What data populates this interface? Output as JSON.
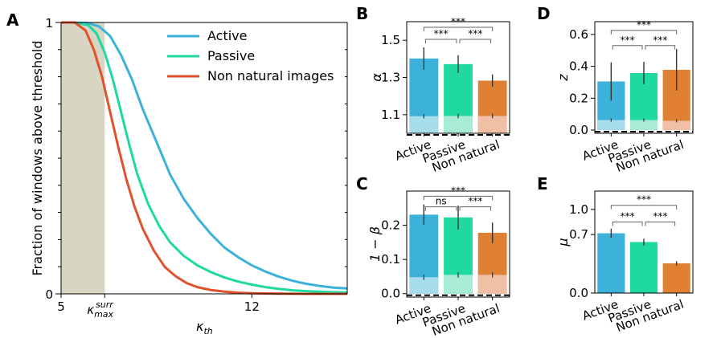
{
  "chart_data": [
    {
      "panel": "A",
      "type": "line",
      "xlabel": "κth",
      "ylabel": "Fraction of windows above threshold",
      "xlim": [
        5,
        15.5
      ],
      "ylim": [
        0,
        1
      ],
      "xtick_labels": [
        "5",
        "κmax^surr",
        "12"
      ],
      "ytick_labels": [
        "0",
        "1"
      ],
      "shaded_region": {
        "x_from": 5,
        "x_to": 6.6
      },
      "legend_position": "top-right",
      "series": [
        {
          "name": "Active",
          "color": "#3cb1d9",
          "x": [
            5,
            5.5,
            6,
            6.4,
            6.8,
            7.2,
            7.6,
            8,
            8.5,
            9,
            9.5,
            10,
            10.5,
            11,
            11.5,
            12,
            12.5,
            13,
            13.5,
            14,
            14.5,
            15,
            15.5
          ],
          "y": [
            1,
            1,
            0.998,
            0.985,
            0.95,
            0.88,
            0.79,
            0.68,
            0.56,
            0.44,
            0.35,
            0.28,
            0.22,
            0.17,
            0.135,
            0.105,
            0.082,
            0.063,
            0.048,
            0.037,
            0.029,
            0.023,
            0.02
          ]
        },
        {
          "name": "Passive",
          "color": "#1fd9a1",
          "x": [
            5,
            5.5,
            6,
            6.3,
            6.6,
            6.9,
            7.2,
            7.5,
            7.8,
            8.2,
            8.6,
            9,
            9.5,
            10,
            10.5,
            11,
            11.5,
            12,
            12.5,
            13,
            13.5,
            14,
            15,
            15.5
          ],
          "y": [
            1,
            1,
            0.99,
            0.96,
            0.89,
            0.79,
            0.67,
            0.55,
            0.44,
            0.33,
            0.25,
            0.19,
            0.14,
            0.105,
            0.08,
            0.06,
            0.045,
            0.034,
            0.025,
            0.018,
            0.013,
            0.01,
            0.006,
            0.005
          ]
        },
        {
          "name": "Non natural images",
          "color": "#e1522c",
          "x": [
            5,
            5.5,
            5.9,
            6.2,
            6.5,
            6.8,
            7.1,
            7.4,
            7.7,
            8,
            8.4,
            8.8,
            9.2,
            9.6,
            10,
            10.5,
            11,
            11.5,
            12,
            13,
            14,
            15,
            15.5
          ],
          "y": [
            1,
            1,
            0.97,
            0.9,
            0.8,
            0.67,
            0.54,
            0.42,
            0.32,
            0.24,
            0.16,
            0.1,
            0.065,
            0.04,
            0.025,
            0.014,
            0.008,
            0.004,
            0.002,
            0.001,
            0,
            0,
            0
          ]
        }
      ]
    },
    {
      "panel": "B",
      "type": "bar",
      "categories": [
        "Active",
        "Passive",
        "Non natural"
      ],
      "ylabel": "α",
      "ylim": [
        1.0,
        1.6
      ],
      "yticks": [
        1.1,
        1.3,
        1.5
      ],
      "ytick_labels": [
        "1.1",
        "1.3",
        "1.5"
      ],
      "values": [
        1.402,
        1.372,
        1.283
      ],
      "errors": [
        0.06,
        0.048,
        0.033
      ],
      "surrogate_values": [
        1.092,
        1.093,
        1.093
      ],
      "surrogate_errors": [
        0.012,
        0.012,
        0.012
      ],
      "baseline": 1.0,
      "significance": [
        {
          "pair": [
            0,
            1
          ],
          "label": "***",
          "level": 1.505
        },
        {
          "pair": [
            1,
            2
          ],
          "label": "***",
          "level": 1.505
        },
        {
          "pair": [
            0,
            2
          ],
          "label": "***",
          "level": 1.57
        }
      ]
    },
    {
      "panel": "C",
      "type": "bar",
      "categories": [
        "Active",
        "Passive",
        "Non natural"
      ],
      "ylabel": "1 − β",
      "ylim": [
        -0.01,
        0.3
      ],
      "yticks": [
        0.0,
        0.1,
        0.2
      ],
      "ytick_labels": [
        "0.0",
        "0.1",
        "0.2"
      ],
      "values": [
        0.231,
        0.223,
        0.178
      ],
      "errors": [
        0.03,
        0.035,
        0.03
      ],
      "surrogate_values": [
        0.048,
        0.055,
        0.055
      ],
      "surrogate_errors": [
        0.008,
        0.008,
        0.008
      ],
      "baseline": 0.0,
      "significance": [
        {
          "pair": [
            0,
            1
          ],
          "label": "ns",
          "level": 0.254
        },
        {
          "pair": [
            1,
            2
          ],
          "label": "***",
          "level": 0.254
        },
        {
          "pair": [
            0,
            2
          ],
          "label": "***",
          "level": 0.285
        }
      ]
    },
    {
      "panel": "D",
      "type": "bar",
      "categories": [
        "Active",
        "Passive",
        "Non natural"
      ],
      "ylabel": "z",
      "ylim": [
        -0.02,
        0.68
      ],
      "yticks": [
        0.0,
        0.2,
        0.4,
        0.6
      ],
      "ytick_labels": [
        "0.0",
        "0.2",
        "0.4",
        "0.6"
      ],
      "values": [
        0.305,
        0.358,
        0.378
      ],
      "errors": [
        0.12,
        0.07,
        0.13
      ],
      "surrogate_values": [
        0.063,
        0.063,
        0.058
      ],
      "surrogate_errors": [
        0.01,
        0.01,
        0.01
      ],
      "baseline": 0.0,
      "significance": [
        {
          "pair": [
            0,
            1
          ],
          "label": "***",
          "level": 0.53
        },
        {
          "pair": [
            1,
            2
          ],
          "label": "***",
          "level": 0.53
        },
        {
          "pair": [
            0,
            2
          ],
          "label": "***",
          "level": 0.625
        }
      ]
    },
    {
      "panel": "E",
      "type": "bar",
      "categories": [
        "Active",
        "Passive",
        "Non natural"
      ],
      "ylabel": "μ",
      "ylim": [
        0,
        1.22
      ],
      "yticks": [
        0.0,
        0.7,
        1.0
      ],
      "ytick_labels": [
        "0.0",
        "0.7",
        "1.0"
      ],
      "values": [
        0.715,
        0.61,
        0.355
      ],
      "errors": [
        0.055,
        0.04,
        0.025
      ],
      "baseline": 0.0,
      "significance": [
        {
          "pair": [
            0,
            1
          ],
          "label": "***",
          "level": 0.85
        },
        {
          "pair": [
            1,
            2
          ],
          "label": "***",
          "level": 0.85
        },
        {
          "pair": [
            0,
            2
          ],
          "label": "***",
          "level": 1.05
        }
      ]
    }
  ],
  "colors": {
    "active": "#3cb1d9",
    "passive": "#1fd9a1",
    "non_natural": "#e08032",
    "active_surrogate": "#a6dcec",
    "passive_surrogate": "#a8ecd6",
    "non_natural_surrogate": "#f0bfa6",
    "non_natural_line": "#e1522c",
    "shade": "#d9d5c3"
  }
}
